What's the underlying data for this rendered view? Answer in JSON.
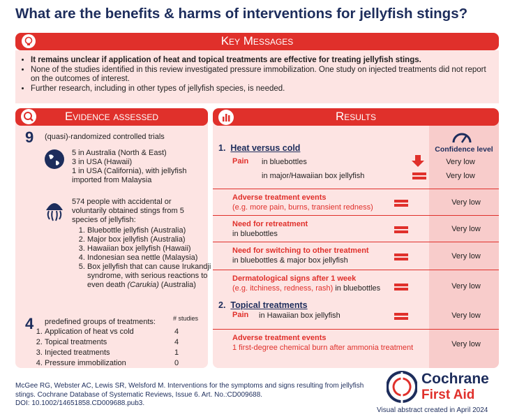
{
  "title": "What are the benefits & harms of interventions for jellyfish stings?",
  "key_messages": {
    "heading": "Key Messages",
    "items": [
      "It remains unclear if application of heat and topical treatments are effective for treating jellyfish stings.",
      "None of the studies identified in this review investigated pressure immobilization. One study on injected treatments did not report on the outcomes of interest.",
      "Further research, including in other types of jellyfish species, is needed."
    ]
  },
  "evidence": {
    "heading": "Evidence assessed",
    "trials": {
      "count": "9",
      "text": "(quasi)-randomized controlled trials"
    },
    "locations": [
      "5 in Australia (North & East)",
      "3 in USA (Hawaii)",
      "1 in USA (California), with jellyfish imported from Malaysia"
    ],
    "participants": "574 people with accidental or voluntarily obtained stings from 5 species of jellyfish:",
    "species": [
      "Bluebottle jellyfish (Australia)",
      "Major box jellyfish  (Australia)",
      "Hawaiian box jellyfish  (Hawaii)",
      "Indonesian sea nettle (Malaysia)",
      "Box jellyfish that can cause Irukandji syndrome, with serious reactions to even death"
    ],
    "species_italic": "(Carukia)",
    "species_tail": " (Australia)",
    "groups": {
      "count": "4",
      "text": "predefined groups of treatments:",
      "studies_header": "# studies",
      "items": [
        {
          "label": "Application of heat vs cold",
          "studies": 4
        },
        {
          "label": "Topical treatments",
          "studies": 4
        },
        {
          "label": "Injected treatments",
          "studies": 1
        },
        {
          "label": "Pressure immobilization",
          "studies": 0
        }
      ]
    }
  },
  "results": {
    "heading": "Results",
    "confidence_header": "Confidence level",
    "sections": [
      {
        "number": "1.",
        "title": "Heat versus cold",
        "outcomes": [
          {
            "label": "Pain",
            "rows": [
              {
                "text": "in bluebottles",
                "confidence": "Very low"
              },
              {
                "text": "in major/Hawaiian box jellyfish",
                "confidence": "Very low"
              }
            ]
          },
          {
            "label": "Adverse treatment events",
            "detail": "(e.g. more pain, burns, transient redness)",
            "confidence": "Very low"
          },
          {
            "label": "Need for retreatment",
            "detail": "in bluebottles",
            "confidence": "Very low"
          },
          {
            "label": "Need for switching to other treatment",
            "detail": "in bluebottles  & major box jellyfish",
            "confidence": "Very low"
          },
          {
            "label": "Dermatological signs after 1 week",
            "detail": "(e.g. itchiness, redness, rash)",
            "detail2": " in bluebottles",
            "confidence": "Very low"
          }
        ]
      },
      {
        "number": "2.",
        "title": "Topical treatments",
        "outcomes": [
          {
            "label": "Pain",
            "detail": "in Hawaiian box jellyfish",
            "confidence": "Very low"
          },
          {
            "label": "Adverse treatment events",
            "detail": "1 first-degree chemical burn after ammonia treatment",
            "confidence": "Very low"
          }
        ]
      }
    ]
  },
  "citation": [
    "McGee RG, Webster AC, Lewis SR, Welsford M. Interventions for the symptoms and signs resulting from jellyfish stings. Cochrane Database of Systematic Reviews, Issue 6. Art. No.:CD009688.",
    "DOI: 10.1002/14651858.CD009688.pub3."
  ],
  "logo": {
    "line1": "Cochrane",
    "line2": "First Aid"
  },
  "footer": "Visual abstract created in April 2024"
}
